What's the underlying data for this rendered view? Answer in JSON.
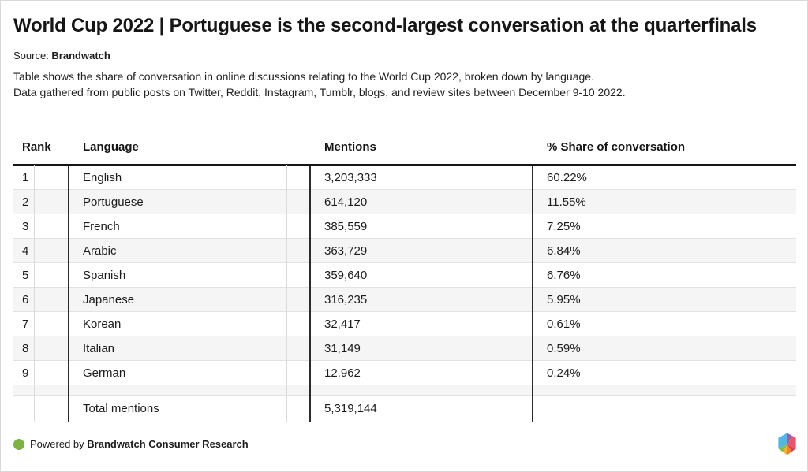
{
  "header": {
    "title": "World Cup 2022 | Portuguese is the second-largest conversation at the quarterfinals",
    "source_prefix": "Source: ",
    "source_name": "Brandwatch",
    "description_line1": "Table shows the share of conversation in online discussions relating to the World Cup 2022, broken down by language.",
    "description_line2": "Data gathered from public posts on Twitter, Reddit, Instagram, Tumblr, blogs, and review sites between December 9-10 2022."
  },
  "chart_data": {
    "type": "table",
    "title": "World Cup 2022 | Portuguese is the second-largest conversation at the quarterfinals",
    "columns": [
      "Rank",
      "Language",
      "Mentions",
      "% Share of conversation"
    ],
    "rows": [
      {
        "rank": "1",
        "language": "English",
        "mentions": "3,203,333",
        "share": "60.22%"
      },
      {
        "rank": "2",
        "language": "Portuguese",
        "mentions": "614,120",
        "share": "11.55%"
      },
      {
        "rank": "3",
        "language": "French",
        "mentions": "385,559",
        "share": "7.25%"
      },
      {
        "rank": "4",
        "language": "Arabic",
        "mentions": "363,729",
        "share": "6.84%"
      },
      {
        "rank": "5",
        "language": "Spanish",
        "mentions": "359,640",
        "share": "6.76%"
      },
      {
        "rank": "6",
        "language": "Japanese",
        "mentions": "316,235",
        "share": "5.95%"
      },
      {
        "rank": "7",
        "language": "Korean",
        "mentions": "32,417",
        "share": "0.61%"
      },
      {
        "rank": "8",
        "language": "Italian",
        "mentions": "31,149",
        "share": "0.59%"
      },
      {
        "rank": "9",
        "language": "German",
        "mentions": "12,962",
        "share": "0.24%"
      }
    ],
    "total_row": {
      "rank": "",
      "language": "Total mentions",
      "mentions": "5,319,144",
      "share": ""
    },
    "layout": {
      "stripe_color": "#f5f5f5",
      "rule_color": "#2b2b2b",
      "header_rule_color": "#161616"
    }
  },
  "footer": {
    "powered_by_prefix": "Powered by ",
    "powered_by_name": "Brandwatch Consumer Research",
    "dot_color": "#7cb342",
    "logo_icon": "brandwatch-hexagon",
    "logo_colors": [
      "#54b7e3",
      "#9c5fa5",
      "#e9556d",
      "#e23d57",
      "#f58220",
      "#fbb034",
      "#7dc242"
    ]
  }
}
